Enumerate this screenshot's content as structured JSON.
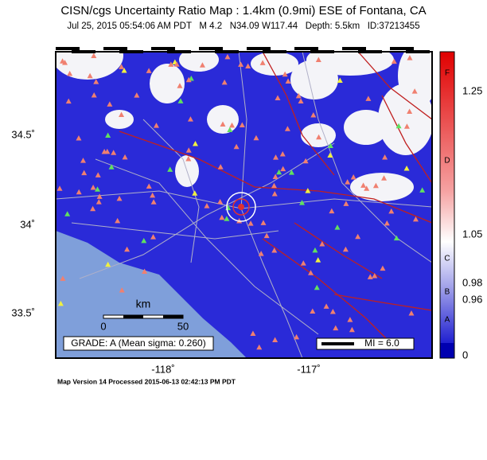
{
  "header": {
    "title": "CISN/cgs Uncertainty Ratio Map : 1.4km (0.9mi) ESE of Fontana, CA",
    "subtitle": "Jul 25, 2015 05:54:06 AM PDT   M 4.2   N34.09 W117.44   Depth: 5.5km   ID:37213455"
  },
  "map": {
    "lat_labels": [
      "34.5˚",
      "34˚",
      "33.5˚"
    ],
    "lon_labels": [
      "-118˚",
      "-117˚"
    ],
    "scale": {
      "unit": "km",
      "labels": [
        "0",
        "50"
      ]
    },
    "grade": "GRADE: A (Mean sigma: 0.260)",
    "legend": "MI = 6.0"
  },
  "colorbar": {
    "labels": [
      "1.25",
      "1.05",
      "0.98",
      "0.96",
      "0"
    ],
    "grades": [
      "F",
      "D",
      "C",
      "B",
      "A"
    ]
  },
  "footer": "Map Version 14 Processed 2015-06-13 02:42:13 PM PDT"
}
